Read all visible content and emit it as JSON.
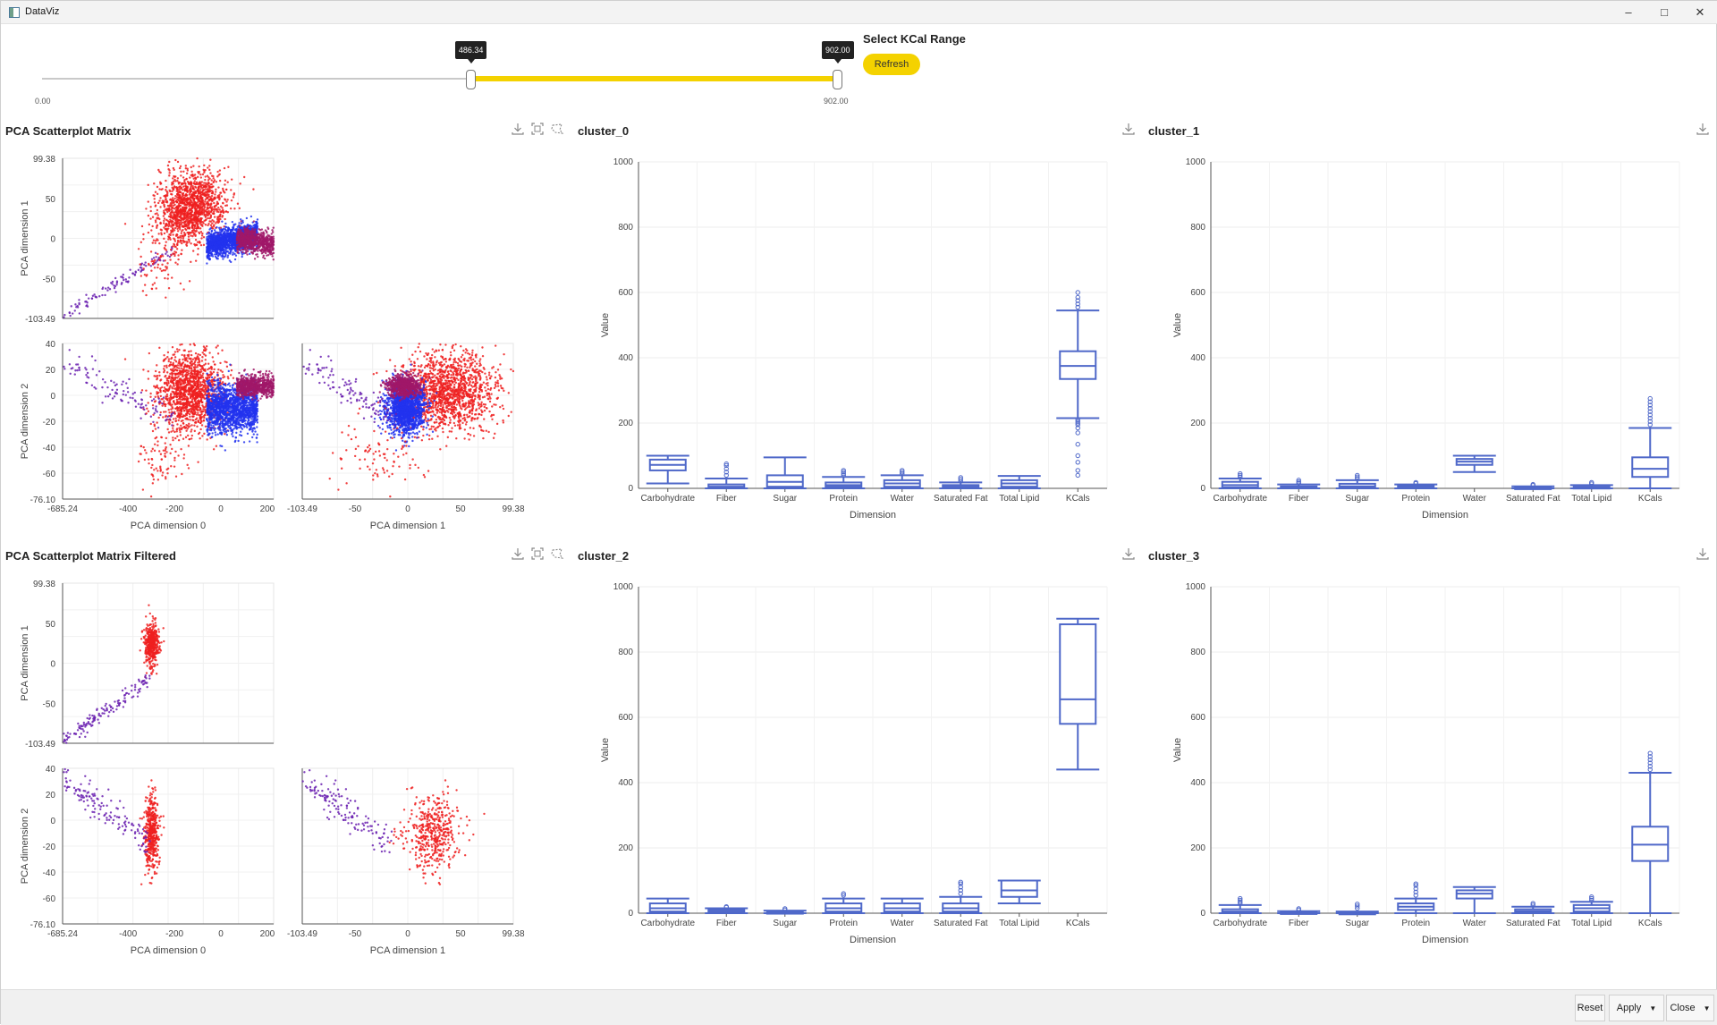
{
  "window": {
    "title": "DataViz",
    "minimize_icon": "minimize-icon",
    "maximize_icon": "maximize-icon",
    "close_icon": "close-icon"
  },
  "kcal_slider": {
    "title": "Select KCal Range",
    "refresh_label": "Refresh",
    "min": 0.0,
    "max": 902.0,
    "low": 486.34,
    "high": 902.0,
    "low_label": "486.34",
    "high_label": "902.00",
    "min_label": "0.00",
    "max_label": "902.00",
    "accent": "#f4d200"
  },
  "panels": {
    "pca_matrix": {
      "title": "PCA Scatterplot Matrix"
    },
    "pca_matrix_filtered": {
      "title": "PCA Scatterplot Matrix Filtered"
    },
    "cluster_0": {
      "title": "cluster_0"
    },
    "cluster_1": {
      "title": "cluster_1"
    },
    "cluster_2": {
      "title": "cluster_2"
    },
    "cluster_3": {
      "title": "cluster_3"
    }
  },
  "footer": {
    "reset_label": "Reset",
    "apply_label": "Apply",
    "close_label": "Close"
  },
  "chart_data": [
    {
      "id": "pca_matrix",
      "type": "scatter",
      "title": "PCA Scatterplot Matrix",
      "dimensions": [
        "PCA dimension 0",
        "PCA dimension 1",
        "PCA dimension 2"
      ],
      "ranges": {
        "dim0": [
          -685.24,
          230
        ],
        "dim1": [
          -103.49,
          99.38
        ],
        "dim2": [
          -76.1,
          40
        ]
      },
      "ticks": {
        "dim0": [
          "-685.24",
          "-400",
          "-200",
          "0",
          "200"
        ],
        "dim1_y": [
          "99.38",
          "50",
          "0",
          "-50",
          "-103.49"
        ],
        "dim1_x": [
          "-103.49",
          "-50",
          "0",
          "50",
          "99.38"
        ],
        "dim2": [
          "40",
          "20",
          "0",
          "-20",
          "-40",
          "-60",
          "-76.10"
        ]
      },
      "colors": {
        "red": "#ee2020",
        "blue": "#2233ee",
        "purple": "#6a20b0",
        "magenta": "#a01868"
      }
    },
    {
      "id": "pca_matrix_filtered",
      "type": "scatter",
      "title": "PCA Scatterplot Matrix Filtered",
      "dimensions": [
        "PCA dimension 0",
        "PCA dimension 1",
        "PCA dimension 2"
      ],
      "ranges": {
        "dim0": [
          -685.24,
          230
        ],
        "dim1": [
          -103.49,
          99.38
        ],
        "dim2": [
          -76.1,
          40
        ]
      },
      "ticks": {
        "dim0": [
          "-685.24",
          "-400",
          "-200",
          "0",
          "200"
        ],
        "dim1_y": [
          "99.38",
          "50",
          "0",
          "-50",
          "-103.49"
        ],
        "dim1_x": [
          "-103.49",
          "-50",
          "0",
          "50",
          "99.38"
        ],
        "dim2": [
          "40",
          "20",
          "0",
          "-20",
          "-40",
          "-60",
          "-76.10"
        ]
      },
      "colors": {
        "red": "#ee2020",
        "purple": "#6a20b0"
      }
    },
    {
      "id": "cluster_0",
      "type": "box",
      "title": "cluster_0",
      "xlabel": "Dimension",
      "ylabel": "Value",
      "ylim": [
        0,
        1000
      ],
      "yticks": [
        0,
        200,
        400,
        600,
        800,
        1000
      ],
      "categories": [
        "Carbohydrate",
        "Fiber",
        "Sugar",
        "Protein",
        "Water",
        "Saturated Fat",
        "Total Lipid",
        "KCals"
      ],
      "boxes": [
        {
          "min": 15,
          "q1": 55,
          "median": 72,
          "q3": 88,
          "max": 100,
          "outliers": []
        },
        {
          "min": 0,
          "q1": 2,
          "median": 5,
          "q3": 12,
          "max": 30,
          "outliers": [
            40,
            50,
            60,
            70,
            75
          ]
        },
        {
          "min": 0,
          "q1": 5,
          "median": 20,
          "q3": 40,
          "max": 95,
          "outliers": []
        },
        {
          "min": 0,
          "q1": 5,
          "median": 10,
          "q3": 18,
          "max": 35,
          "outliers": [
            40,
            45,
            50,
            55
          ]
        },
        {
          "min": 0,
          "q1": 5,
          "median": 15,
          "q3": 25,
          "max": 40,
          "outliers": [
            45,
            50,
            55
          ]
        },
        {
          "min": 0,
          "q1": 2,
          "median": 5,
          "q3": 10,
          "max": 18,
          "outliers": [
            22,
            28,
            33
          ]
        },
        {
          "min": 0,
          "q1": 5,
          "median": 15,
          "q3": 25,
          "max": 38,
          "outliers": []
        },
        {
          "min": 215,
          "q1": 335,
          "median": 375,
          "q3": 420,
          "max": 545,
          "outliers": [
            40,
            55,
            80,
            100,
            135,
            170,
            185,
            195,
            200,
            205,
            210,
            555,
            565,
            575,
            585,
            600
          ]
        }
      ]
    },
    {
      "id": "cluster_1",
      "type": "box",
      "title": "cluster_1",
      "xlabel": "Dimension",
      "ylabel": "Value",
      "ylim": [
        0,
        1000
      ],
      "yticks": [
        0,
        200,
        400,
        600,
        800,
        1000
      ],
      "categories": [
        "Carbohydrate",
        "Fiber",
        "Sugar",
        "Protein",
        "Water",
        "Saturated Fat",
        "Total Lipid",
        "KCals"
      ],
      "boxes": [
        {
          "min": 0,
          "q1": 3,
          "median": 10,
          "q3": 20,
          "max": 30,
          "outliers": [
            35,
            40,
            45
          ]
        },
        {
          "min": 0,
          "q1": 1,
          "median": 3,
          "q3": 6,
          "max": 12,
          "outliers": [
            16,
            20,
            25
          ]
        },
        {
          "min": 0,
          "q1": 2,
          "median": 6,
          "q3": 14,
          "max": 25,
          "outliers": [
            30,
            35,
            40
          ]
        },
        {
          "min": 0,
          "q1": 1,
          "median": 4,
          "q3": 8,
          "max": 12,
          "outliers": [
            15,
            18
          ]
        },
        {
          "min": 50,
          "q1": 72,
          "median": 82,
          "q3": 90,
          "max": 100,
          "outliers": []
        },
        {
          "min": 0,
          "q1": 0,
          "median": 1,
          "q3": 3,
          "max": 6,
          "outliers": [
            9,
            12
          ]
        },
        {
          "min": 0,
          "q1": 1,
          "median": 2,
          "q3": 5,
          "max": 10,
          "outliers": [
            14,
            18
          ]
        },
        {
          "min": 0,
          "q1": 35,
          "median": 60,
          "q3": 95,
          "max": 185,
          "outliers": [
            195,
            205,
            215,
            225,
            235,
            245,
            255,
            265,
            275
          ]
        }
      ]
    },
    {
      "id": "cluster_2",
      "type": "box",
      "title": "cluster_2",
      "xlabel": "Dimension",
      "ylabel": "Value",
      "ylim": [
        0,
        1000
      ],
      "yticks": [
        0,
        200,
        400,
        600,
        800,
        1000
      ],
      "categories": [
        "Carbohydrate",
        "Fiber",
        "Sugar",
        "Protein",
        "Water",
        "Saturated Fat",
        "Total Lipid",
        "KCals"
      ],
      "boxes": [
        {
          "min": 0,
          "q1": 5,
          "median": 15,
          "q3": 30,
          "max": 45,
          "outliers": []
        },
        {
          "min": 0,
          "q1": 2,
          "median": 5,
          "q3": 10,
          "max": 15,
          "outliers": [
            18,
            20
          ]
        },
        {
          "min": 0,
          "q1": 1,
          "median": 2,
          "q3": 4,
          "max": 8,
          "outliers": [
            10,
            14
          ]
        },
        {
          "min": 0,
          "q1": 5,
          "median": 15,
          "q3": 30,
          "max": 45,
          "outliers": [
            55,
            60
          ]
        },
        {
          "min": 0,
          "q1": 5,
          "median": 15,
          "q3": 30,
          "max": 45,
          "outliers": []
        },
        {
          "min": 0,
          "q1": 5,
          "median": 15,
          "q3": 30,
          "max": 50,
          "outliers": [
            60,
            70,
            80,
            90,
            95
          ]
        },
        {
          "min": 30,
          "q1": 50,
          "median": 70,
          "q3": 100,
          "max": 100,
          "outliers": []
        },
        {
          "min": 440,
          "q1": 580,
          "median": 655,
          "q3": 885,
          "max": 902,
          "outliers": []
        }
      ]
    },
    {
      "id": "cluster_3",
      "type": "box",
      "title": "cluster_3",
      "xlabel": "Dimension",
      "ylabel": "Value",
      "ylim": [
        0,
        1000
      ],
      "yticks": [
        0,
        200,
        400,
        600,
        800,
        1000
      ],
      "categories": [
        "Carbohydrate",
        "Fiber",
        "Sugar",
        "Protein",
        "Water",
        "Saturated Fat",
        "Total Lipid",
        "KCals"
      ],
      "boxes": [
        {
          "min": 0,
          "q1": 1,
          "median": 5,
          "q3": 12,
          "max": 25,
          "outliers": [
            30,
            35,
            40,
            45
          ]
        },
        {
          "min": 0,
          "q1": 0,
          "median": 1,
          "q3": 3,
          "max": 6,
          "outliers": [
            10,
            14
          ]
        },
        {
          "min": 0,
          "q1": 0,
          "median": 1,
          "q3": 2,
          "max": 5,
          "outliers": [
            15,
            22,
            28
          ]
        },
        {
          "min": 0,
          "q1": 10,
          "median": 20,
          "q3": 30,
          "max": 45,
          "outliers": [
            55,
            65,
            75,
            85,
            90
          ]
        },
        {
          "min": 0,
          "q1": 45,
          "median": 60,
          "q3": 70,
          "max": 80,
          "outliers": []
        },
        {
          "min": 0,
          "q1": 2,
          "median": 6,
          "q3": 12,
          "max": 20,
          "outliers": [
            25,
            30
          ]
        },
        {
          "min": 0,
          "q1": 5,
          "median": 15,
          "q3": 25,
          "max": 35,
          "outliers": [
            40,
            45,
            50
          ]
        },
        {
          "min": 0,
          "q1": 160,
          "median": 210,
          "q3": 265,
          "max": 430,
          "outliers": [
            440,
            450,
            460,
            470,
            480,
            490
          ]
        }
      ]
    }
  ]
}
